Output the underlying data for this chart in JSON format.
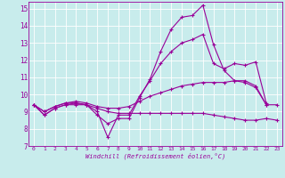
{
  "xlabel": "Windchill (Refroidissement éolien,°C)",
  "bg_color": "#c8ecec",
  "line_color": "#990099",
  "grid_color": "#ffffff",
  "xlim": [
    -0.5,
    23.5
  ],
  "ylim": [
    7,
    15.4
  ],
  "xticks": [
    0,
    1,
    2,
    3,
    4,
    5,
    6,
    7,
    8,
    9,
    10,
    11,
    12,
    13,
    14,
    15,
    16,
    17,
    18,
    19,
    20,
    21,
    22,
    23
  ],
  "yticks": [
    7,
    8,
    9,
    10,
    11,
    12,
    13,
    14,
    15
  ],
  "series": [
    {
      "x": [
        0,
        1,
        2,
        3,
        4,
        5,
        6,
        7,
        8,
        9,
        10,
        11,
        12,
        13,
        14,
        15,
        16,
        17,
        18,
        19,
        20,
        21,
        22
      ],
      "y": [
        9.4,
        8.8,
        9.2,
        9.4,
        9.4,
        9.4,
        8.8,
        8.3,
        8.6,
        8.6,
        9.8,
        10.9,
        12.5,
        13.8,
        14.5,
        14.6,
        15.2,
        12.9,
        11.4,
        10.8,
        10.7,
        10.4,
        9.4
      ]
    },
    {
      "x": [
        0,
        1,
        2,
        3,
        4,
        5,
        6,
        7,
        8,
        9,
        10,
        11,
        12,
        13,
        14,
        15,
        16,
        17,
        18,
        19,
        20,
        21,
        22
      ],
      "y": [
        9.4,
        8.8,
        9.2,
        9.4,
        9.5,
        9.4,
        9.0,
        7.5,
        8.8,
        8.8,
        9.9,
        10.8,
        11.8,
        12.5,
        13.0,
        13.2,
        13.5,
        11.8,
        11.5,
        11.8,
        11.7,
        11.9,
        9.5
      ]
    },
    {
      "x": [
        0,
        1,
        2,
        3,
        4,
        5,
        6,
        7,
        8,
        9,
        10,
        11,
        12,
        13,
        14,
        15,
        16,
        17,
        18,
        19,
        20,
        21,
        22,
        23
      ],
      "y": [
        9.4,
        9.0,
        9.3,
        9.5,
        9.6,
        9.5,
        9.3,
        9.2,
        9.2,
        9.3,
        9.6,
        9.9,
        10.1,
        10.3,
        10.5,
        10.6,
        10.7,
        10.7,
        10.7,
        10.8,
        10.8,
        10.5,
        9.4,
        9.4
      ]
    },
    {
      "x": [
        0,
        1,
        2,
        3,
        4,
        5,
        6,
        7,
        8,
        9,
        10,
        11,
        12,
        13,
        14,
        15,
        16,
        17,
        18,
        19,
        20,
        21,
        22,
        23
      ],
      "y": [
        9.4,
        9.0,
        9.3,
        9.5,
        9.5,
        9.4,
        9.2,
        9.0,
        8.9,
        8.9,
        8.9,
        8.9,
        8.9,
        8.9,
        8.9,
        8.9,
        8.9,
        8.8,
        8.7,
        8.6,
        8.5,
        8.5,
        8.6,
        8.5
      ]
    }
  ]
}
